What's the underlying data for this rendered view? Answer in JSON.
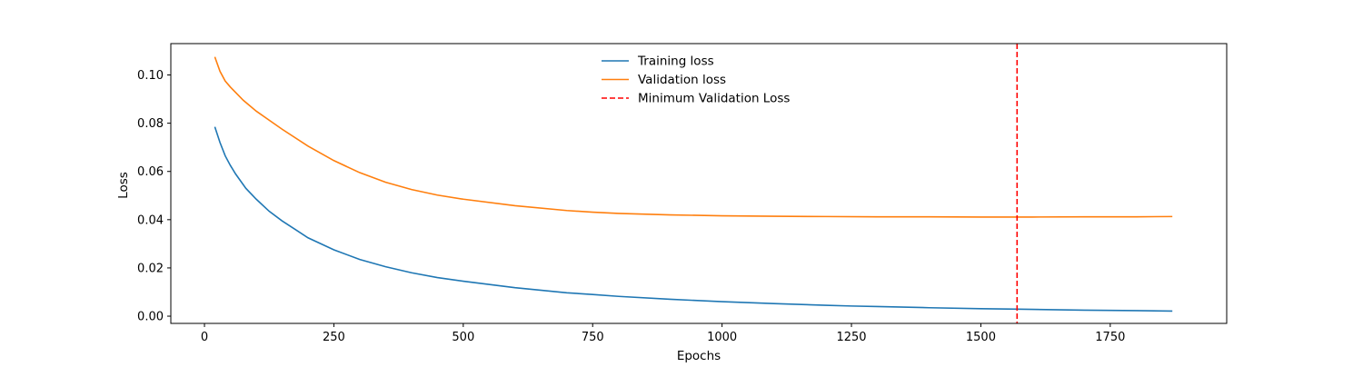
{
  "chart_data": {
    "type": "line",
    "title": "",
    "xlabel": "Epochs",
    "ylabel": "Loss",
    "xlim": [
      -65,
      1975
    ],
    "ylim": [
      -0.003,
      0.113
    ],
    "x_ticks": [
      0,
      250,
      500,
      750,
      1000,
      1250,
      1500,
      1750
    ],
    "x_tick_labels": [
      "0",
      "250",
      "500",
      "750",
      "1000",
      "1250",
      "1500",
      "1750"
    ],
    "y_ticks": [
      0.0,
      0.02,
      0.04,
      0.06,
      0.08,
      0.1
    ],
    "y_tick_labels": [
      "0.00",
      "0.02",
      "0.04",
      "0.06",
      "0.08",
      "0.10"
    ],
    "grid": false,
    "legend_position": "top-center",
    "legend": [
      {
        "label": "Training loss",
        "color": "#1f77b4",
        "style": "solid"
      },
      {
        "label": "Validation loss",
        "color": "#ff7f0e",
        "style": "solid"
      },
      {
        "label": "Minimum Validation Loss",
        "color": "#ff0000",
        "style": "dashed"
      }
    ],
    "series": [
      {
        "name": "Training loss",
        "color": "#1f77b4",
        "x": [
          20,
          30,
          40,
          50,
          60,
          80,
          100,
          125,
          150,
          175,
          200,
          250,
          300,
          350,
          400,
          450,
          500,
          600,
          700,
          750,
          800,
          900,
          1000,
          1100,
          1200,
          1250,
          1300,
          1400,
          1500,
          1570,
          1600,
          1700,
          1750,
          1800,
          1870
        ],
        "values": [
          0.0785,
          0.072,
          0.0665,
          0.0625,
          0.059,
          0.053,
          0.0485,
          0.0435,
          0.0395,
          0.036,
          0.0325,
          0.0275,
          0.0235,
          0.0205,
          0.018,
          0.016,
          0.0145,
          0.0118,
          0.0097,
          0.009,
          0.0082,
          0.007,
          0.006,
          0.0052,
          0.0045,
          0.0042,
          0.004,
          0.0035,
          0.0031,
          0.0029,
          0.0028,
          0.0025,
          0.0024,
          0.0023,
          0.0021
        ]
      },
      {
        "name": "Validation loss",
        "color": "#ff7f0e",
        "x": [
          20,
          30,
          40,
          50,
          75,
          100,
          150,
          200,
          250,
          300,
          350,
          400,
          450,
          500,
          600,
          700,
          750,
          800,
          900,
          1000,
          1100,
          1200,
          1300,
          1400,
          1500,
          1570,
          1600,
          1700,
          1800,
          1870
        ],
        "values": [
          0.1075,
          0.1015,
          0.0975,
          0.095,
          0.0895,
          0.085,
          0.0775,
          0.0705,
          0.0645,
          0.0595,
          0.0555,
          0.0525,
          0.0502,
          0.0485,
          0.0458,
          0.0438,
          0.0431,
          0.0426,
          0.042,
          0.0416,
          0.0414,
          0.0413,
          0.0412,
          0.0412,
          0.0411,
          0.0411,
          0.0411,
          0.0412,
          0.0412,
          0.0413
        ]
      }
    ],
    "vlines": [
      {
        "name": "Minimum Validation Loss",
        "x": 1570,
        "color": "#ff0000",
        "style": "dashed"
      }
    ]
  }
}
